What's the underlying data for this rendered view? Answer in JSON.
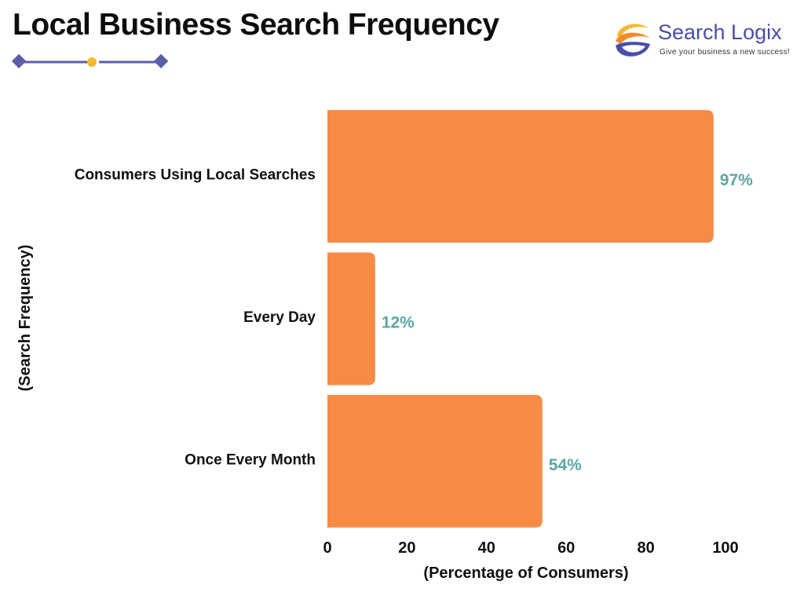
{
  "header": {
    "title": "Local Business Search Frequency"
  },
  "logo": {
    "name": "Search Logix",
    "tagline": "Give your business a new success!"
  },
  "colors": {
    "bar": "#F68B45",
    "data_label": "#5BA7A2",
    "decor_line": "#5B5EA6",
    "decor_dot": "#F5B82E"
  },
  "chart_data": {
    "type": "bar",
    "orientation": "horizontal",
    "title": "Local Business Search Frequency",
    "categories": [
      "Consumers Using Local Searches",
      "Every Day",
      "Once Every Month"
    ],
    "values": [
      97,
      12,
      54
    ],
    "data_labels": [
      "97%",
      "12%",
      "54%"
    ],
    "xlabel": "(Percentage of Consumers)",
    "ylabel": "(Search Frequency)",
    "xlim": [
      0,
      100
    ],
    "xticks": [
      0,
      20,
      40,
      60,
      80,
      100
    ],
    "grid": false,
    "legend": "none"
  }
}
